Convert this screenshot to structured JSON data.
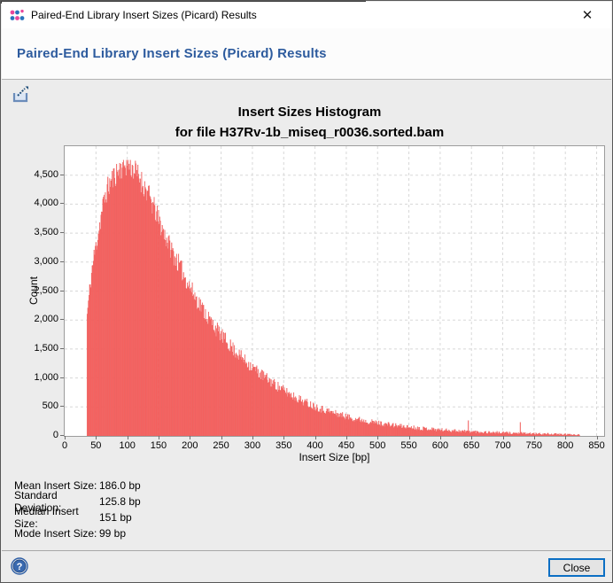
{
  "window": {
    "title": "Paired-End Library Insert Sizes (Picard) Results",
    "close_glyph": "✕"
  },
  "header": {
    "title": "Paired-End Library Insert Sizes (Picard) Results"
  },
  "chart_data": {
    "type": "bar",
    "title": "Insert Sizes Histogram",
    "subtitle": "for file H37Rv-1b_miseq_r0036.sorted.bam",
    "xlabel": "Insert Size [bp]",
    "ylabel": "Count",
    "xlim": [
      0,
      862
    ],
    "ylim": [
      0,
      5000
    ],
    "x_ticks": [
      0,
      50,
      100,
      150,
      200,
      250,
      300,
      350,
      400,
      450,
      500,
      550,
      600,
      650,
      700,
      750,
      800,
      850
    ],
    "y_ticks": [
      0,
      500,
      1000,
      1500,
      2000,
      2500,
      3000,
      3500,
      4000,
      4500
    ],
    "y_tick_labels": [
      "0",
      "500",
      "1,000",
      "1,500",
      "2,000",
      "2,500",
      "3,000",
      "3,500",
      "4,000",
      "4,500"
    ],
    "grid": true,
    "bar_color": "#fa6462",
    "bar_edge_color": "#e85a58",
    "grid_color": "#d8d8d8",
    "bin_width_bp": 1,
    "range_bp": [
      36,
      823
    ],
    "envelope": [
      [
        36,
        2100
      ],
      [
        40,
        2500
      ],
      [
        44,
        2900
      ],
      [
        48,
        3150
      ],
      [
        52,
        3400
      ],
      [
        56,
        3650
      ],
      [
        60,
        3900
      ],
      [
        65,
        4150
      ],
      [
        70,
        4300
      ],
      [
        75,
        4400
      ],
      [
        80,
        4500
      ],
      [
        85,
        4570
      ],
      [
        90,
        4630
      ],
      [
        95,
        4680
      ],
      [
        100,
        4700
      ],
      [
        105,
        4650
      ],
      [
        110,
        4600
      ],
      [
        115,
        4530
      ],
      [
        120,
        4450
      ],
      [
        125,
        4350
      ],
      [
        130,
        4250
      ],
      [
        135,
        4130
      ],
      [
        140,
        4000
      ],
      [
        145,
        3870
      ],
      [
        150,
        3730
      ],
      [
        155,
        3600
      ],
      [
        160,
        3470
      ],
      [
        165,
        3350
      ],
      [
        170,
        3230
      ],
      [
        175,
        3120
      ],
      [
        180,
        3010
      ],
      [
        185,
        2900
      ],
      [
        190,
        2790
      ],
      [
        195,
        2680
      ],
      [
        200,
        2570
      ],
      [
        210,
        2380
      ],
      [
        220,
        2200
      ],
      [
        230,
        2030
      ],
      [
        240,
        1880
      ],
      [
        250,
        1740
      ],
      [
        260,
        1610
      ],
      [
        270,
        1490
      ],
      [
        280,
        1380
      ],
      [
        290,
        1280
      ],
      [
        300,
        1185
      ],
      [
        310,
        1095
      ],
      [
        320,
        1010
      ],
      [
        330,
        930
      ],
      [
        340,
        855
      ],
      [
        350,
        785
      ],
      [
        360,
        720
      ],
      [
        370,
        660
      ],
      [
        380,
        605
      ],
      [
        390,
        555
      ],
      [
        400,
        510
      ],
      [
        410,
        468
      ],
      [
        420,
        430
      ],
      [
        430,
        395
      ],
      [
        440,
        363
      ],
      [
        450,
        334
      ],
      [
        460,
        307
      ],
      [
        470,
        282
      ],
      [
        480,
        260
      ],
      [
        490,
        240
      ],
      [
        500,
        222
      ],
      [
        510,
        205
      ],
      [
        520,
        190
      ],
      [
        530,
        176
      ],
      [
        540,
        163
      ],
      [
        550,
        151
      ],
      [
        560,
        140
      ],
      [
        570,
        130
      ],
      [
        580,
        121
      ],
      [
        590,
        112
      ],
      [
        600,
        104
      ],
      [
        610,
        97
      ],
      [
        620,
        91
      ],
      [
        630,
        85
      ],
      [
        640,
        79
      ],
      [
        650,
        74
      ],
      [
        660,
        69
      ],
      [
        670,
        64
      ],
      [
        680,
        60
      ],
      [
        690,
        56
      ],
      [
        700,
        52
      ],
      [
        710,
        49
      ],
      [
        720,
        46
      ],
      [
        730,
        43
      ],
      [
        740,
        40
      ],
      [
        750,
        37
      ],
      [
        760,
        34
      ],
      [
        770,
        32
      ],
      [
        780,
        29
      ],
      [
        790,
        27
      ],
      [
        800,
        25
      ],
      [
        810,
        23
      ],
      [
        818,
        21
      ],
      [
        823,
        19
      ]
    ],
    "spikes": [
      [
        645,
        265
      ],
      [
        728,
        235
      ]
    ],
    "noise": {
      "seed": 11,
      "poisson_k": 3.2,
      "clamp_max": 4760
    }
  },
  "stats": {
    "rows": [
      {
        "label": "Mean Insert Size:",
        "value": "186.0 bp"
      },
      {
        "label": "Standard Deviation:",
        "value": "125.8 bp"
      },
      {
        "label": "Median Insert Size:",
        "value": "151 bp"
      },
      {
        "label": "Mode Insert Size:",
        "value": "99 bp"
      }
    ]
  },
  "footer": {
    "close_label": "Close"
  },
  "colors": {
    "header_text": "#2d5b9e",
    "bar": "#fa6462",
    "close_button_border": "#0b6fc4",
    "icon_pink": "#e8479c",
    "icon_blue": "#2a72bd"
  }
}
